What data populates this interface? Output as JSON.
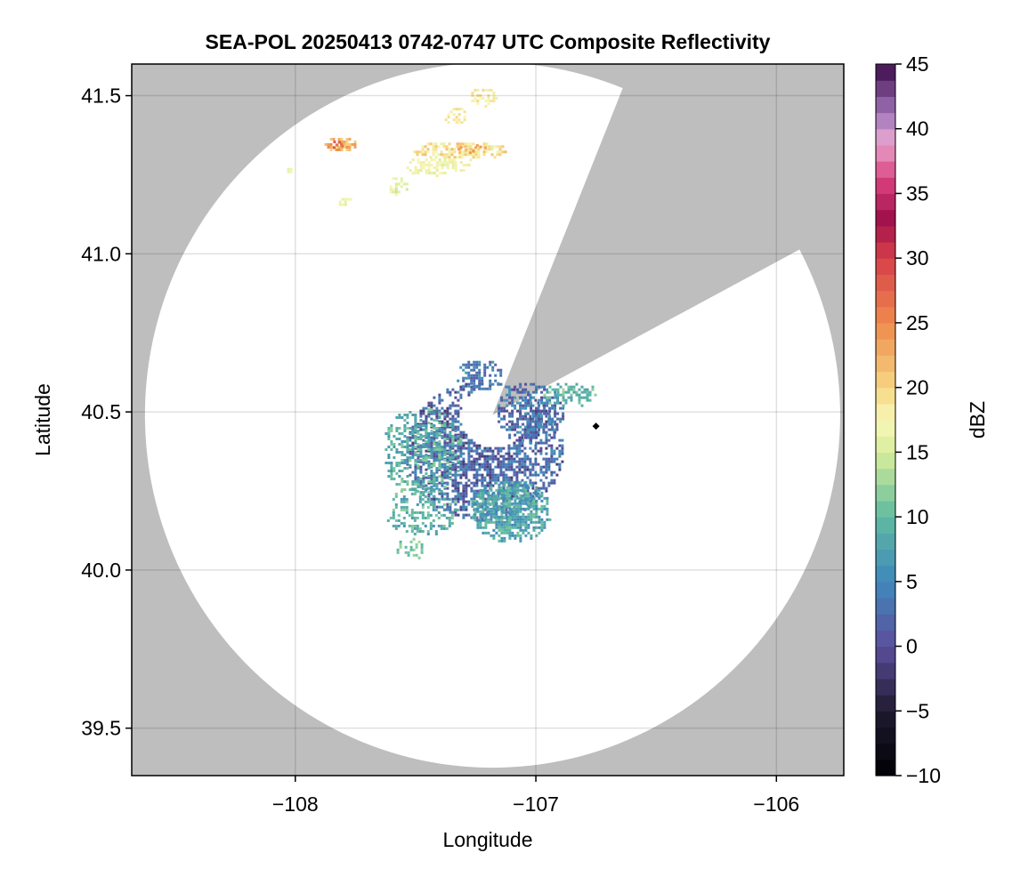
{
  "chart_data": {
    "type": "heatmap",
    "title": "SEA-POL 20250413 0742-0747 UTC Composite Reflectivity",
    "xlabel": "Longitude",
    "ylabel": "Latitude",
    "xlim": [
      -108.68,
      -105.72
    ],
    "ylim": [
      39.35,
      41.6
    ],
    "xticks": [
      -108,
      -107,
      -106
    ],
    "xtick_labels": [
      "−108",
      "−107",
      "−106"
    ],
    "yticks": [
      39.5,
      40.0,
      40.5,
      41.0,
      41.5
    ],
    "ytick_labels": [
      "39.5",
      "40.0",
      "40.5",
      "41.0",
      "41.5"
    ],
    "grid": true,
    "missing_color": "#bebebe",
    "range_disk_color": "#ffffff",
    "radar": {
      "lon": -107.18,
      "lat": 40.49,
      "max_range_lon_deg": 1.445,
      "max_range_lat_deg": 1.115,
      "blocked_sector_bearings_deg": [
        22,
        62
      ]
    },
    "marker": {
      "lon": -106.75,
      "lat": 40.455,
      "shape": "diamond",
      "color": "#000000"
    },
    "colorbar": {
      "label": "dBZ",
      "range": [
        -10,
        45
      ],
      "ticks": [
        -10,
        -5,
        0,
        5,
        10,
        15,
        20,
        25,
        30,
        35,
        40,
        45
      ],
      "tick_labels": [
        "−10",
        "−5",
        "0",
        "5",
        "10",
        "15",
        "20",
        "25",
        "30",
        "35",
        "40",
        "45"
      ],
      "colormap": "spectral-reversed",
      "color_stops": [
        {
          "v": -10,
          "c": "#000004"
        },
        {
          "v": -5,
          "c": "#1f1a31"
        },
        {
          "v": 0,
          "c": "#5c4f9c"
        },
        {
          "v": 5,
          "c": "#3f88bc"
        },
        {
          "v": 10,
          "c": "#5fbaa0"
        },
        {
          "v": 15,
          "c": "#d8ee9a"
        },
        {
          "v": 17.5,
          "c": "#f9f7b8"
        },
        {
          "v": 20,
          "c": "#f6d783"
        },
        {
          "v": 25,
          "c": "#ef8a4d"
        },
        {
          "v": 30,
          "c": "#d6404a"
        },
        {
          "v": 33,
          "c": "#a0104b"
        },
        {
          "v": 36,
          "c": "#d8407c"
        },
        {
          "v": 39,
          "c": "#e8a6cf"
        },
        {
          "v": 41,
          "c": "#a77bbe"
        },
        {
          "v": 45,
          "c": "#3b0a4a"
        }
      ]
    },
    "echo_regions": [
      {
        "lon": -107.22,
        "lat": 40.38,
        "rlon": 0.33,
        "rlat": 0.22,
        "dbz": 2,
        "spread": 4,
        "inner_rlon": 0.14,
        "inner_rlat": 0.1,
        "density": 0.75
      },
      {
        "lon": -107.03,
        "lat": 40.5,
        "rlon": 0.14,
        "rlat": 0.1,
        "dbz": 3,
        "spread": 4,
        "density": 0.6
      },
      {
        "lon": -107.11,
        "lat": 40.19,
        "rlon": 0.17,
        "rlat": 0.1,
        "dbz": 8,
        "spread": 3,
        "density": 0.85
      },
      {
        "lon": -107.48,
        "lat": 40.19,
        "rlon": 0.15,
        "rlat": 0.08,
        "dbz": 9,
        "spread": 3,
        "density": 0.45
      },
      {
        "lon": -107.48,
        "lat": 40.38,
        "rlon": 0.17,
        "rlat": 0.14,
        "dbz": 9,
        "spread": 3,
        "density": 0.5
      },
      {
        "lon": -107.53,
        "lat": 40.07,
        "rlon": 0.06,
        "rlat": 0.04,
        "dbz": 11,
        "spread": 2,
        "density": 0.4
      },
      {
        "lon": -107.24,
        "lat": 40.62,
        "rlon": 0.1,
        "rlat": 0.05,
        "dbz": 4,
        "spread": 3,
        "density": 0.55
      },
      {
        "lon": -106.86,
        "lat": 40.56,
        "rlon": 0.12,
        "rlat": 0.04,
        "dbz": 10,
        "spread": 3,
        "density": 0.5
      },
      {
        "lon": -107.32,
        "lat": 41.33,
        "rlon": 0.2,
        "rlat": 0.03,
        "dbz": 19,
        "spread": 3,
        "density": 0.8
      },
      {
        "lon": -107.42,
        "lat": 41.28,
        "rlon": 0.14,
        "rlat": 0.03,
        "dbz": 17,
        "spread": 2,
        "density": 0.7
      },
      {
        "lon": -107.82,
        "lat": 41.35,
        "rlon": 0.07,
        "rlat": 0.025,
        "dbz": 22,
        "spread": 3,
        "density": 0.85
      },
      {
        "lon": -107.34,
        "lat": 41.44,
        "rlon": 0.05,
        "rlat": 0.03,
        "dbz": 18,
        "spread": 2,
        "density": 0.6
      },
      {
        "lon": -107.22,
        "lat": 41.5,
        "rlon": 0.06,
        "rlat": 0.03,
        "dbz": 18,
        "spread": 2,
        "density": 0.55
      },
      {
        "lon": -107.8,
        "lat": 41.17,
        "rlon": 0.03,
        "rlat": 0.015,
        "dbz": 16,
        "spread": 1,
        "density": 0.9
      },
      {
        "lon": -108.03,
        "lat": 41.27,
        "rlon": 0.015,
        "rlat": 0.01,
        "dbz": 17,
        "spread": 1,
        "density": 0.9
      },
      {
        "lon": -107.58,
        "lat": 41.22,
        "rlon": 0.05,
        "rlat": 0.03,
        "dbz": 16,
        "spread": 2,
        "density": 0.6
      }
    ],
    "hotspots": [
      {
        "lon": -107.82,
        "lat": 41.35,
        "dbz": 28
      },
      {
        "lon": -107.24,
        "lat": 41.34,
        "dbz": 24
      },
      {
        "lon": -107.3,
        "lat": 41.33,
        "dbz": 23
      }
    ]
  }
}
